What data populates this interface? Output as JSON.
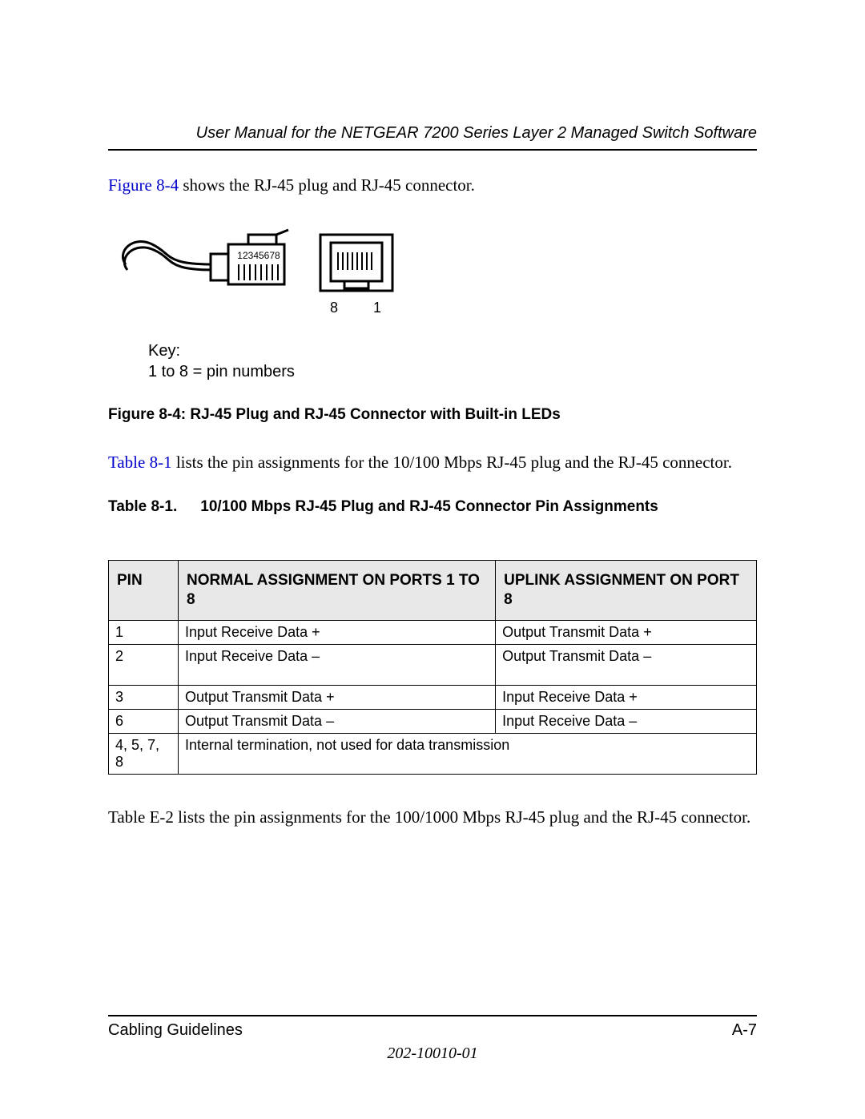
{
  "header": {
    "title": "User Manual for the NETGEAR 7200 Series Layer 2 Managed Switch Software"
  },
  "intro": {
    "link_text": "Figure 8-4",
    "rest": " shows the RJ-45 plug and RJ-45 connector."
  },
  "figure": {
    "pin_label": "12345678",
    "jack_left": "8",
    "jack_right": "1",
    "key_title": "Key:",
    "key_body": " 1 to 8 = pin numbers",
    "caption_prefix": "Figure 8-4:  ",
    "caption_text": "RJ-45 Plug and RJ-45 Connector with Built-in LEDs"
  },
  "para2": {
    "link_text": "Table 8-1",
    "rest": " lists the pin assignments for the 10/100 Mbps RJ-45 plug and the RJ-45 connector."
  },
  "table": {
    "number": "Table 8-1.",
    "title": "10/100 Mbps RJ-45 Plug and RJ-45 Connector Pin Assignments",
    "columns": {
      "pin": "PIN",
      "normal": "NORMAL ASSIGNMENT ON PORTS 1 TO 8",
      "uplink": "UPLINK ASSIGNMENT ON PORT 8"
    },
    "rows": [
      {
        "pin": "1",
        "normal": "Input Receive Data +",
        "uplink": "Output Transmit Data +",
        "tall": false
      },
      {
        "pin": "2",
        "normal": "Input Receive Data –",
        "uplink": "Output Transmit Data –",
        "tall": true
      },
      {
        "pin": "3",
        "normal": "Output Transmit Data +",
        "uplink": "Input Receive Data +",
        "tall": false
      },
      {
        "pin": "6",
        "normal": "Output Transmit Data –",
        "uplink": "Input Receive Data –",
        "tall": false
      }
    ],
    "merged_row": {
      "pin": "4, 5, 7, 8",
      "text": "Internal termination, not used for data transmission"
    }
  },
  "para3": {
    "text": "Table E-2 lists the pin assignments for the 100/1000 Mbps RJ-45 plug and the RJ-45 connector."
  },
  "footer": {
    "section": "Cabling Guidelines",
    "page": "A-7",
    "docnum": "202-10010-01"
  }
}
